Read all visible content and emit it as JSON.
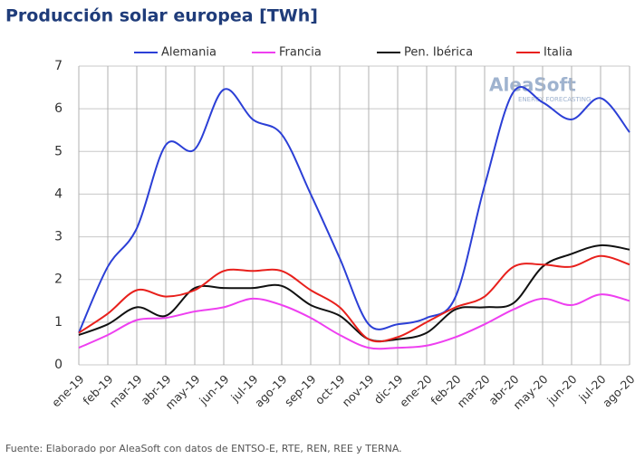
{
  "chart_data": {
    "type": "line",
    "title": "Producción solar europea [TWh]",
    "source": "Fuente: Elaborado por AleaSoft con datos de ENTSO-E, RTE, REN, REE y TERNA.",
    "watermark": {
      "brand": "AleaSoft",
      "tagline": "ENERGY FORECASTING"
    },
    "categories": [
      "ene-19",
      "feb-19",
      "mar-19",
      "abr-19",
      "may-19",
      "jun-19",
      "jul-19",
      "ago-19",
      "sep-19",
      "oct-19",
      "nov-19",
      "dic-19",
      "ene-20",
      "feb-20",
      "mar-20",
      "abr-20",
      "may-20",
      "jun-20",
      "jul-20",
      "ago-20"
    ],
    "series": [
      {
        "name": "Alemania",
        "color": "#2b3fd6",
        "values": [
          0.75,
          2.3,
          3.2,
          5.15,
          5.05,
          6.45,
          5.75,
          5.4,
          4.0,
          2.5,
          0.95,
          0.95,
          1.1,
          1.6,
          4.2,
          6.4,
          6.15,
          5.75,
          6.25,
          5.45
        ]
      },
      {
        "name": "Francia",
        "color": "#ee3ff0",
        "values": [
          0.4,
          0.7,
          1.05,
          1.1,
          1.25,
          1.35,
          1.55,
          1.4,
          1.1,
          0.7,
          0.4,
          0.4,
          0.45,
          0.65,
          0.95,
          1.3,
          1.55,
          1.4,
          1.65,
          1.5
        ]
      },
      {
        "name": "Pen. Ibérica",
        "color": "#111111",
        "values": [
          0.7,
          0.95,
          1.35,
          1.15,
          1.8,
          1.8,
          1.8,
          1.85,
          1.4,
          1.15,
          0.6,
          0.6,
          0.75,
          1.3,
          1.35,
          1.45,
          2.3,
          2.6,
          2.8,
          2.7
        ]
      },
      {
        "name": "Italia",
        "color": "#e8201c",
        "values": [
          0.75,
          1.2,
          1.75,
          1.6,
          1.75,
          2.2,
          2.2,
          2.2,
          1.75,
          1.35,
          0.6,
          0.65,
          1.0,
          1.35,
          1.6,
          2.3,
          2.35,
          2.3,
          2.55,
          2.35
        ]
      }
    ],
    "ylim": [
      0,
      7
    ],
    "yticks": [
      0,
      1,
      2,
      3,
      4,
      5,
      6,
      7
    ],
    "grid": true
  }
}
